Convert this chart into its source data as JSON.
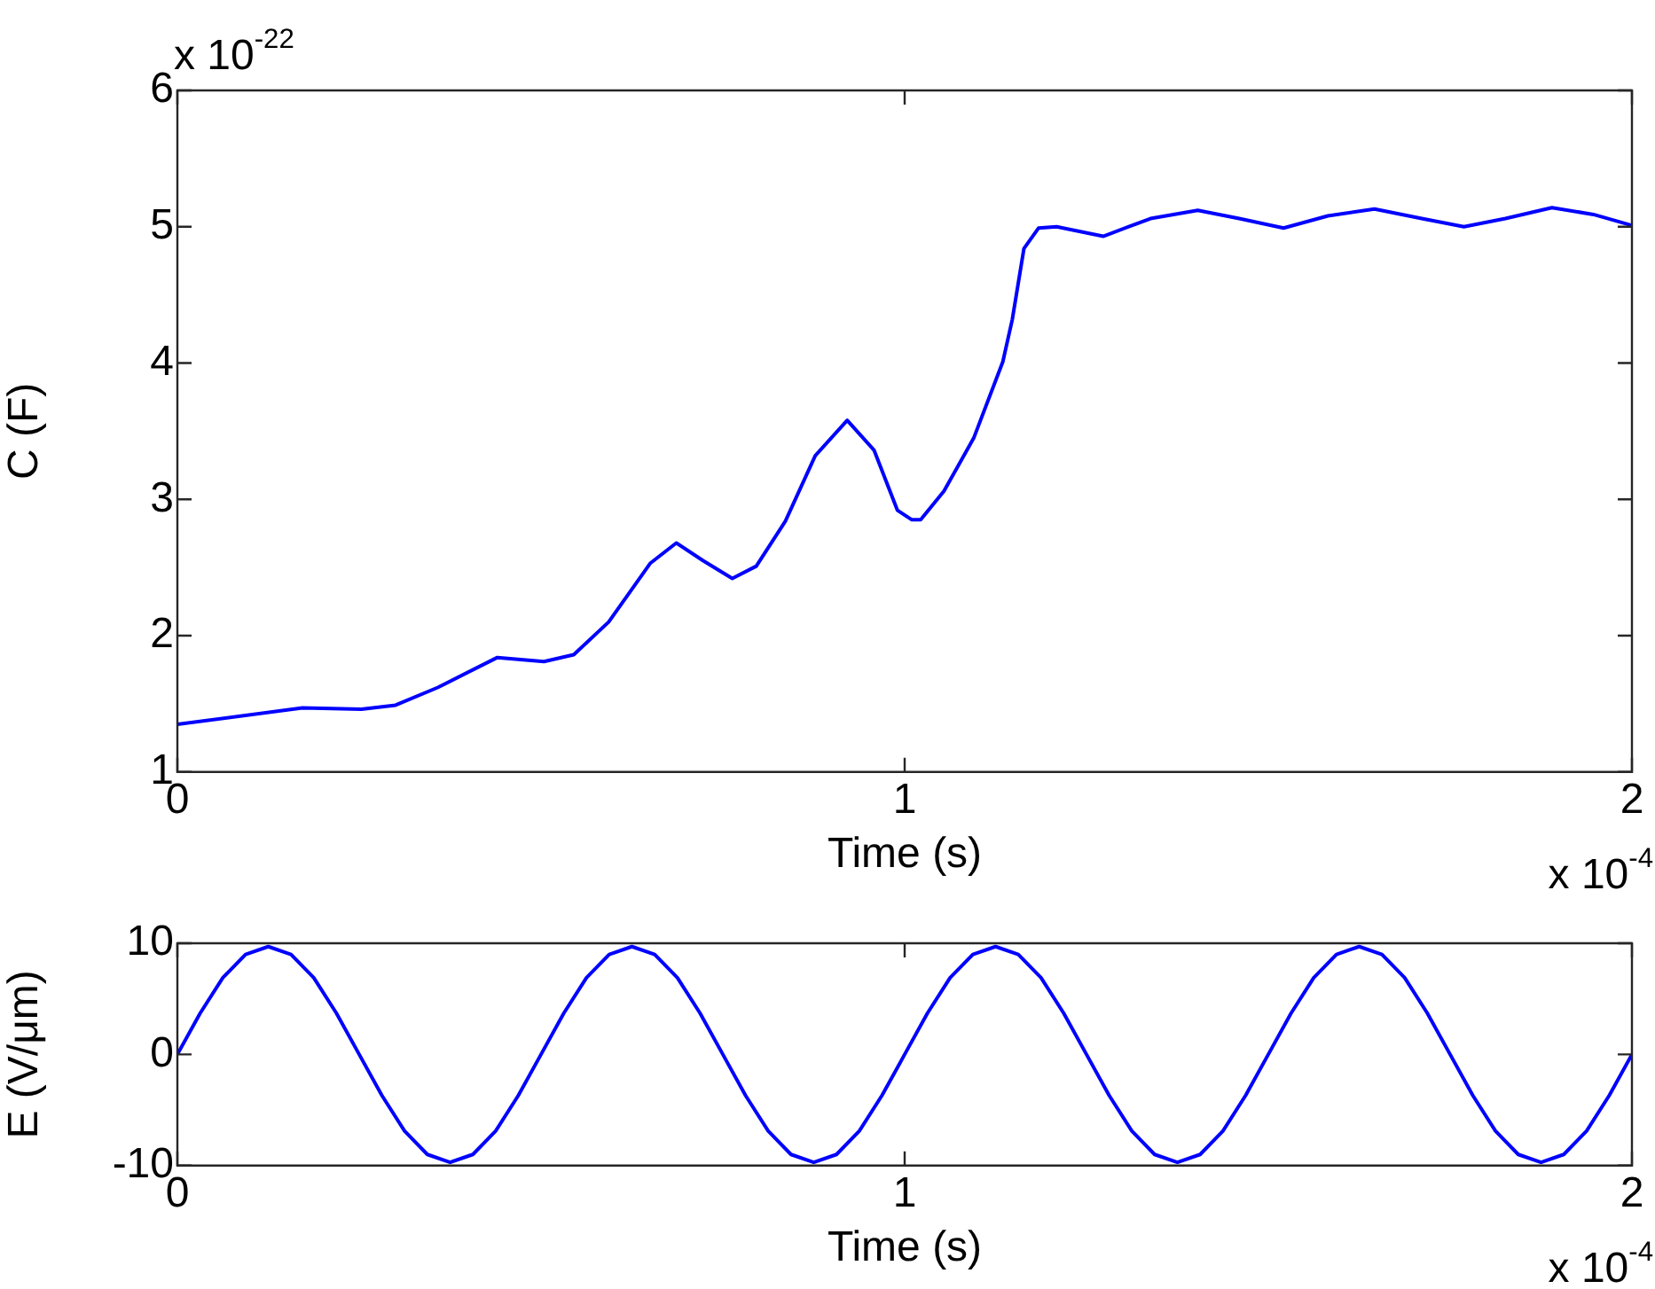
{
  "chart_data": [
    {
      "type": "line",
      "xlabel": "Time (s)",
      "ylabel": "C (F)",
      "x": [
        0,
        0.172,
        0.253,
        0.3,
        0.358,
        0.44,
        0.504,
        0.545,
        0.593,
        0.65,
        0.686,
        0.723,
        0.763,
        0.796,
        0.836,
        0.877,
        0.921,
        0.958,
        0.99,
        1.01,
        1.022,
        1.054,
        1.095,
        1.135,
        1.148,
        1.164,
        1.184,
        1.209,
        1.273,
        1.338,
        1.403,
        1.46,
        1.521,
        1.582,
        1.646,
        1.711,
        1.769,
        1.826,
        1.89,
        1.947,
        2
      ],
      "series": [
        {
          "color": "#0000ff",
          "values": [
            1.35,
            1.47,
            1.46,
            1.49,
            1.62,
            1.84,
            1.81,
            1.86,
            2.1,
            2.53,
            2.68,
            2.55,
            2.42,
            2.51,
            2.84,
            3.32,
            3.58,
            3.36,
            2.92,
            2.85,
            2.85,
            3.06,
            3.45,
            4.01,
            4.32,
            4.84,
            4.99,
            5.0,
            4.93,
            5.06,
            5.12,
            5.06,
            4.99,
            5.08,
            5.13,
            5.06,
            5.0,
            5.06,
            5.14,
            5.09,
            5.01
          ]
        }
      ],
      "xlim": [
        0,
        2
      ],
      "xticks": [
        0,
        1,
        2
      ],
      "ylim": [
        1,
        6
      ],
      "yticks": [
        1,
        2,
        3,
        4,
        5,
        6
      ],
      "grid": false,
      "legend": false,
      "marker": "none",
      "line_style": "solid",
      "annotations": [
        "x 10$^{-22}$",
        "x 10$^{-4}$"
      ]
    },
    {
      "type": "line",
      "xlabel": "Time (s)",
      "ylabel": "E (V/μm)",
      "x": [
        0,
        0.03125,
        0.0625,
        0.09375,
        0.125,
        0.15625,
        0.1875,
        0.21875,
        0.25,
        0.28125,
        0.3125,
        0.34375,
        0.375,
        0.40625,
        0.4375,
        0.46875,
        0.5,
        0.53125,
        0.5625,
        0.59375,
        0.625,
        0.65625,
        0.6875,
        0.71875,
        0.75,
        0.78125,
        0.8125,
        0.84375,
        0.875,
        0.90625,
        0.9375,
        0.96875,
        1,
        1.03125,
        1.0625,
        1.09375,
        1.125,
        1.15625,
        1.1875,
        1.21875,
        1.25,
        1.28125,
        1.3125,
        1.34375,
        1.375,
        1.40625,
        1.4375,
        1.46875,
        1.5,
        1.53125,
        1.5625,
        1.59375,
        1.625,
        1.65625,
        1.6875,
        1.71875,
        1.75,
        1.78125,
        1.8125,
        1.84375,
        1.875,
        1.90625,
        1.9375,
        1.96875,
        2
      ],
      "series": [
        {
          "color": "#0000ff",
          "values": [
            0,
            3.7,
            6.9,
            9.0,
            9.7,
            9.0,
            6.9,
            3.7,
            0,
            -3.7,
            -6.9,
            -9.0,
            -9.7,
            -9.0,
            -6.9,
            -3.7,
            0,
            3.7,
            6.9,
            9.0,
            9.7,
            9.0,
            6.9,
            3.7,
            0,
            -3.7,
            -6.9,
            -9.0,
            -9.7,
            -9.0,
            -6.9,
            -3.7,
            0,
            3.7,
            6.9,
            9.0,
            9.7,
            9.0,
            6.9,
            3.7,
            0,
            -3.7,
            -6.9,
            -9.0,
            -9.7,
            -9.0,
            -6.9,
            -3.7,
            0,
            3.7,
            6.9,
            9.0,
            9.7,
            9.0,
            6.9,
            3.7,
            0,
            -3.7,
            -6.9,
            -9.0,
            -9.7,
            -9.0,
            -6.9,
            -3.7,
            0
          ]
        }
      ],
      "xlim": [
        0,
        2
      ],
      "xticks": [
        0,
        1,
        2
      ],
      "ylim": [
        -10,
        10
      ],
      "yticks": [
        -10,
        0,
        10
      ],
      "grid": false,
      "legend": false,
      "marker": "none",
      "line_style": "solid",
      "annotations": [
        "x 10$^{-4}$"
      ]
    }
  ]
}
